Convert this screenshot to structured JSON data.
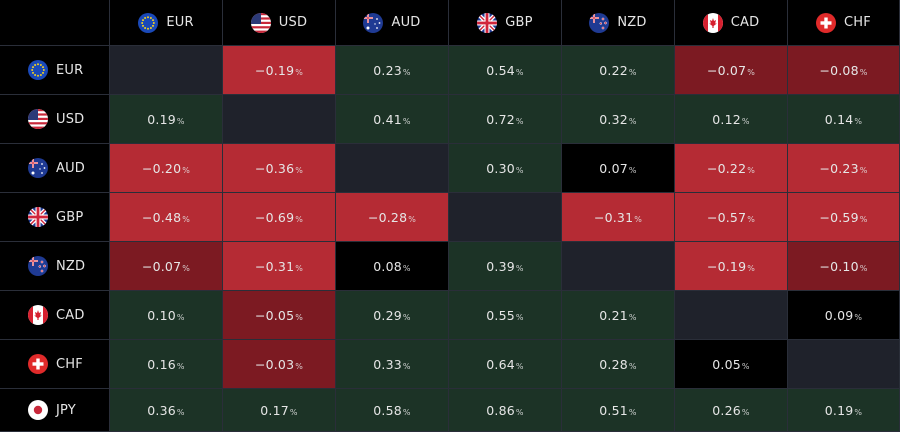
{
  "heatmap": {
    "currencies": [
      "EUR",
      "USD",
      "AUD",
      "GBP",
      "NZD",
      "CAD",
      "CHF"
    ],
    "row_currencies": [
      "EUR",
      "USD",
      "AUD",
      "GBP",
      "NZD",
      "CAD",
      "CHF",
      "JPY"
    ],
    "percent_sign": "%",
    "flag_icons": {
      "EUR": "eu-flag-icon",
      "USD": "us-flag-icon",
      "AUD": "au-flag-icon",
      "GBP": "gb-flag-icon",
      "NZD": "nz-flag-icon",
      "CAD": "ca-flag-icon",
      "CHF": "ch-flag-icon",
      "JPY": "jp-flag-icon"
    },
    "colors": {
      "positive": "#1c3326",
      "neutral": "#000000",
      "negative_light": "#b52b34",
      "negative_dark": "#7c1a22",
      "diagonal": "#1f222b"
    },
    "rows": [
      {
        "label": "EUR",
        "cells": [
          {
            "text": "",
            "tone": "diagonal"
          },
          {
            "text": "−0.19",
            "tone": "negative_light"
          },
          {
            "text": "0.23",
            "tone": "positive"
          },
          {
            "text": "0.54",
            "tone": "positive"
          },
          {
            "text": "0.22",
            "tone": "positive"
          },
          {
            "text": "−0.07",
            "tone": "negative_dark"
          },
          {
            "text": "−0.08",
            "tone": "negative_dark"
          }
        ]
      },
      {
        "label": "USD",
        "cells": [
          {
            "text": "0.19",
            "tone": "positive"
          },
          {
            "text": "",
            "tone": "diagonal"
          },
          {
            "text": "0.41",
            "tone": "positive"
          },
          {
            "text": "0.72",
            "tone": "positive"
          },
          {
            "text": "0.32",
            "tone": "positive"
          },
          {
            "text": "0.12",
            "tone": "positive"
          },
          {
            "text": "0.14",
            "tone": "positive"
          }
        ]
      },
      {
        "label": "AUD",
        "cells": [
          {
            "text": "−0.20",
            "tone": "negative_light"
          },
          {
            "text": "−0.36",
            "tone": "negative_light"
          },
          {
            "text": "",
            "tone": "diagonal"
          },
          {
            "text": "0.30",
            "tone": "positive"
          },
          {
            "text": "0.07",
            "tone": "neutral"
          },
          {
            "text": "−0.22",
            "tone": "negative_light"
          },
          {
            "text": "−0.23",
            "tone": "negative_light"
          }
        ]
      },
      {
        "label": "GBP",
        "cells": [
          {
            "text": "−0.48",
            "tone": "negative_light"
          },
          {
            "text": "−0.69",
            "tone": "negative_light"
          },
          {
            "text": "−0.28",
            "tone": "negative_light"
          },
          {
            "text": "",
            "tone": "diagonal"
          },
          {
            "text": "−0.31",
            "tone": "negative_light"
          },
          {
            "text": "−0.57",
            "tone": "negative_light"
          },
          {
            "text": "−0.59",
            "tone": "negative_light"
          }
        ]
      },
      {
        "label": "NZD",
        "cells": [
          {
            "text": "−0.07",
            "tone": "negative_dark"
          },
          {
            "text": "−0.31",
            "tone": "negative_light"
          },
          {
            "text": "0.08",
            "tone": "neutral"
          },
          {
            "text": "0.39",
            "tone": "positive"
          },
          {
            "text": "",
            "tone": "diagonal"
          },
          {
            "text": "−0.19",
            "tone": "negative_light"
          },
          {
            "text": "−0.10",
            "tone": "negative_dark"
          }
        ]
      },
      {
        "label": "CAD",
        "cells": [
          {
            "text": "0.10",
            "tone": "positive"
          },
          {
            "text": "−0.05",
            "tone": "negative_dark"
          },
          {
            "text": "0.29",
            "tone": "positive"
          },
          {
            "text": "0.55",
            "tone": "positive"
          },
          {
            "text": "0.21",
            "tone": "positive"
          },
          {
            "text": "",
            "tone": "diagonal"
          },
          {
            "text": "0.09",
            "tone": "neutral"
          }
        ]
      },
      {
        "label": "CHF",
        "cells": [
          {
            "text": "0.16",
            "tone": "positive"
          },
          {
            "text": "−0.03",
            "tone": "negative_dark"
          },
          {
            "text": "0.33",
            "tone": "positive"
          },
          {
            "text": "0.64",
            "tone": "positive"
          },
          {
            "text": "0.28",
            "tone": "positive"
          },
          {
            "text": "0.05",
            "tone": "neutral"
          },
          {
            "text": "",
            "tone": "diagonal"
          }
        ]
      },
      {
        "label": "JPY",
        "cells": [
          {
            "text": "0.36",
            "tone": "positive"
          },
          {
            "text": "0.17",
            "tone": "positive"
          },
          {
            "text": "0.58",
            "tone": "positive"
          },
          {
            "text": "0.86",
            "tone": "positive"
          },
          {
            "text": "0.51",
            "tone": "positive"
          },
          {
            "text": "0.26",
            "tone": "positive"
          },
          {
            "text": "0.19",
            "tone": "positive"
          }
        ]
      }
    ]
  }
}
